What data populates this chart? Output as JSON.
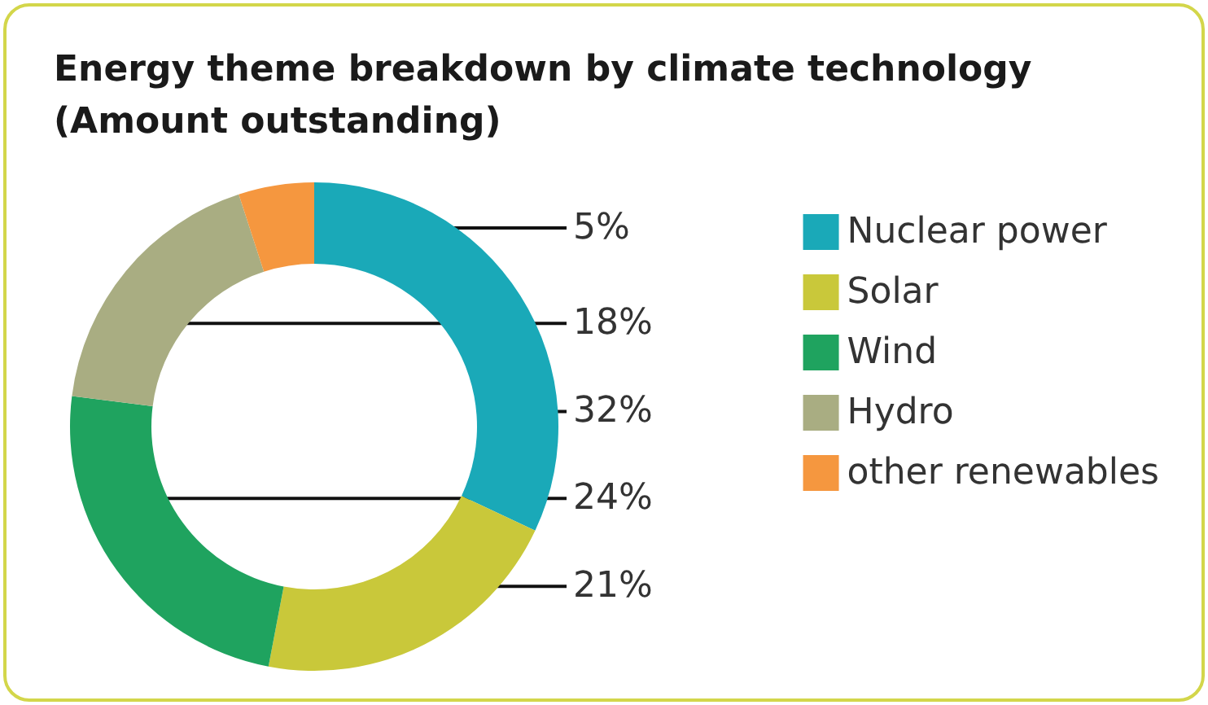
{
  "chart_data": {
    "type": "donut",
    "title": "Energy theme breakdown by climate technology (Amount outstanding)",
    "categories": [
      "Nuclear power",
      "Solar",
      "Wind",
      "Hydro",
      "other renewables"
    ],
    "values": [
      32,
      21,
      24,
      18,
      5
    ],
    "value_labels": [
      "32%",
      "21%",
      "24%",
      "18%",
      "5%"
    ],
    "colors": [
      "#1aa9b8",
      "#c9c83a",
      "#1fa35f",
      "#a9ad82",
      "#f5973f"
    ],
    "legend": "right"
  }
}
